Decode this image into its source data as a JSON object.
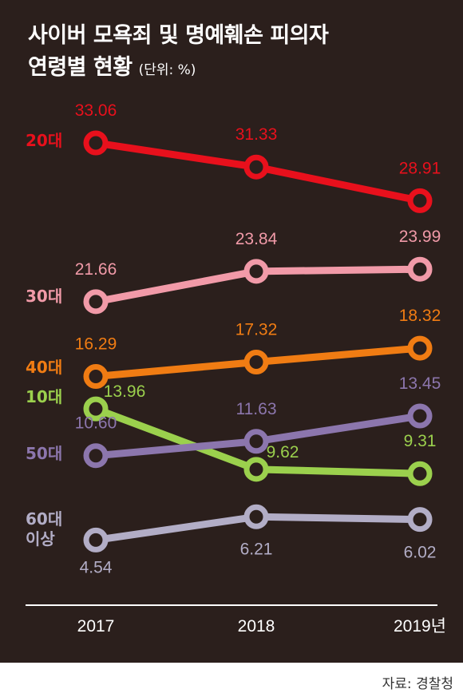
{
  "title": {
    "line1": "사이버 모욕죄 및 명예훼손 피의자",
    "line2": "연령별 현황",
    "unit": "(단위: %)"
  },
  "source": "자료: 경찰청",
  "chart_data": {
    "type": "line",
    "categories": [
      "2017",
      "2018",
      "2019년"
    ],
    "series": [
      {
        "name": "20대",
        "values": [
          33.06,
          31.33,
          28.91
        ],
        "color": "#e8101c"
      },
      {
        "name": "30대",
        "values": [
          21.66,
          23.84,
          23.99
        ],
        "color": "#f19aa8"
      },
      {
        "name": "40대",
        "values": [
          16.29,
          17.32,
          18.32
        ],
        "color": "#f07c13"
      },
      {
        "name": "10대",
        "values": [
          13.96,
          9.62,
          9.31
        ],
        "color": "#9bd04d"
      },
      {
        "name": "50대",
        "values": [
          10.6,
          11.63,
          13.45
        ],
        "color": "#8c76ad"
      },
      {
        "name": "60대 이상",
        "values": [
          4.54,
          6.21,
          6.02
        ],
        "color": "#b2adc6"
      }
    ],
    "value_labels": [
      [
        "33.06",
        "31.33",
        "28.91"
      ],
      [
        "21.66",
        "23.84",
        "23.99"
      ],
      [
        "16.29",
        "17.32",
        "18.32"
      ],
      [
        "13.96",
        "9.62",
        "9.31"
      ],
      [
        "10.60",
        "11.63",
        "13.45"
      ],
      [
        "4.54",
        "6.21",
        "6.02"
      ]
    ],
    "legend_placement": "left, next to each line",
    "grid": false
  }
}
